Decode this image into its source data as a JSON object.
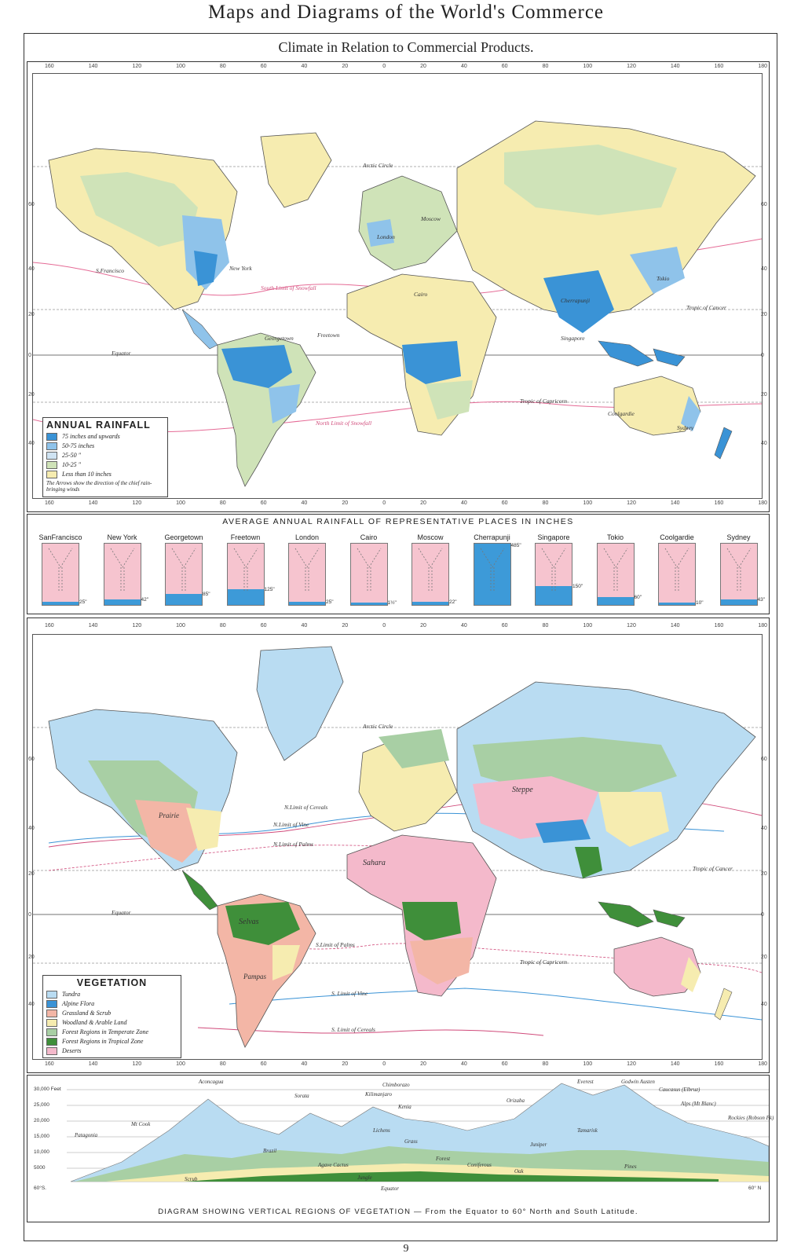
{
  "page": {
    "title": "Maps and Diagrams of the World's Commerce",
    "subtitle": "Climate in Relation to Commercial Products.",
    "page_number": "9"
  },
  "scale": {
    "top_longitudes": [
      "160",
      "140",
      "120",
      "100",
      "80",
      "60",
      "40",
      "20",
      "0",
      "20",
      "40",
      "60",
      "80",
      "100",
      "120",
      "140",
      "160",
      "180"
    ],
    "rain_left_lats": [
      "60",
      "40",
      "20",
      "0",
      "20",
      "40"
    ],
    "rain_right_lats": [
      "60",
      "40",
      "20",
      "0",
      "20",
      "40"
    ],
    "veg_left_lats": [
      "60",
      "40",
      "20",
      "0",
      "20",
      "40"
    ],
    "veg_right_lats": [
      "60",
      "40",
      "20",
      "0",
      "20",
      "40"
    ]
  },
  "rain_map": {
    "places": [
      "S.Francisco",
      "New York",
      "Georgetown",
      "Freetown",
      "London",
      "Moscow",
      "Cairo",
      "Cherrapunji",
      "Singapore",
      "Tokio",
      "Coolgardie",
      "Sydney"
    ],
    "lines": {
      "arctic": "Arctic Circle",
      "cancer": "Tropic of Cancer",
      "equator": "Equator",
      "capricorn": "Tropic of Capricorn",
      "snow_south": "South Limit of Snowfall",
      "snow_north": "North Limit of Snowfall"
    },
    "legend": {
      "title": "ANNUAL RAINFALL",
      "items": [
        {
          "label": "75 inches and upwards",
          "color": "#3a93d6"
        },
        {
          "label": "50-75 inches",
          "color": "#8fc3ea"
        },
        {
          "label": "25-50 \"",
          "color": "#cfe3f2"
        },
        {
          "label": "10-25 \"",
          "color": "#cfe3b8"
        },
        {
          "label": "Less than 10 inches",
          "color": "#f6ecb0"
        }
      ],
      "note": "The Arrows show the direction of the chief rain-bringing winds"
    }
  },
  "rainfall_chart": {
    "title": "AVERAGE ANNUAL RAINFALL OF REPRESENTATIVE PLACES IN INCHES",
    "max": 485,
    "bars": [
      {
        "place": "SanFrancisco",
        "value": 25,
        "label": "25\""
      },
      {
        "place": "New York",
        "value": 42,
        "label": "42\""
      },
      {
        "place": "Georgetown",
        "value": 85,
        "label": "85\""
      },
      {
        "place": "Freetown",
        "value": 125,
        "label": "125\""
      },
      {
        "place": "London",
        "value": 25,
        "label": "25\""
      },
      {
        "place": "Cairo",
        "value": 1.5,
        "label": "1½\""
      },
      {
        "place": "Moscow",
        "value": 22,
        "label": "22\""
      },
      {
        "place": "Cherrapunji",
        "value": 485,
        "label": "485\""
      },
      {
        "place": "Singapore",
        "value": 150,
        "label": "150\""
      },
      {
        "place": "Tokio",
        "value": 60,
        "label": "60\""
      },
      {
        "place": "Coolgardie",
        "value": 10,
        "label": "10\""
      },
      {
        "place": "Sydney",
        "value": 43,
        "label": "43\""
      }
    ]
  },
  "veg_map": {
    "lines": {
      "arctic": "Arctic Circle",
      "cereals_n": "N.Limit of Cereals",
      "vine_n": "N.Limit of Vine",
      "palms_n": "N.Limit of Palms",
      "cancer": "Tropic of Cancer",
      "equator": "Equator",
      "palms_s": "S.Limit of Palms",
      "capricorn": "Tropic of Capricorn",
      "vine_s": "S. Limit of Vine",
      "cereals_s": "S. Limit of Cereals"
    },
    "regions": [
      "Steppe",
      "Sahara",
      "Selvas",
      "Pampas",
      "Prairie"
    ],
    "legend": {
      "title": "VEGETATION",
      "items": [
        {
          "label": "Tundra",
          "color": "#b9dcf2"
        },
        {
          "label": "Alpine Flora",
          "color": "#3a93d6"
        },
        {
          "label": "Grassland & Scrub",
          "color": "#f3b6a6"
        },
        {
          "label": "Woodland & Arable Land",
          "color": "#f6ecb0"
        },
        {
          "label": "Forest Regions in Temperate Zone",
          "color": "#a8cfa4"
        },
        {
          "label": "Forest Regions in Tropical Zone",
          "color": "#3f8f3a"
        },
        {
          "label": "Deserts",
          "color": "#f4b9cb"
        }
      ]
    }
  },
  "vertical_diagram": {
    "caption": "DIAGRAM SHOWING VERTICAL REGIONS OF VEGETATION — From the Equator to 60° North and South Latitude.",
    "altitudes": [
      "30,000 Feet",
      "25,000",
      "20,000",
      "15,000",
      "10,000",
      "5000"
    ],
    "left_end": "60°S.",
    "right_end": "60° N",
    "equator": "Equator",
    "peaks": [
      "Patagonia",
      "Mt Cook",
      "Aconcagua",
      "Sorata",
      "Kilimanjaro",
      "Chimborazo",
      "Kenia",
      "Orizaba",
      "Everest",
      "Godwin Austen",
      "Caucasus (Elbruz)",
      "Alps (Mt Blanc)",
      "Rockies (Robson Pk)"
    ],
    "zones": [
      "Scrub",
      "Brazil",
      "Lichens",
      "Grass",
      "Agave Cactus",
      "Coniferous",
      "Oak",
      "Jungle",
      "Forest",
      "Tamarisk",
      "Juniper",
      "Pines"
    ]
  }
}
